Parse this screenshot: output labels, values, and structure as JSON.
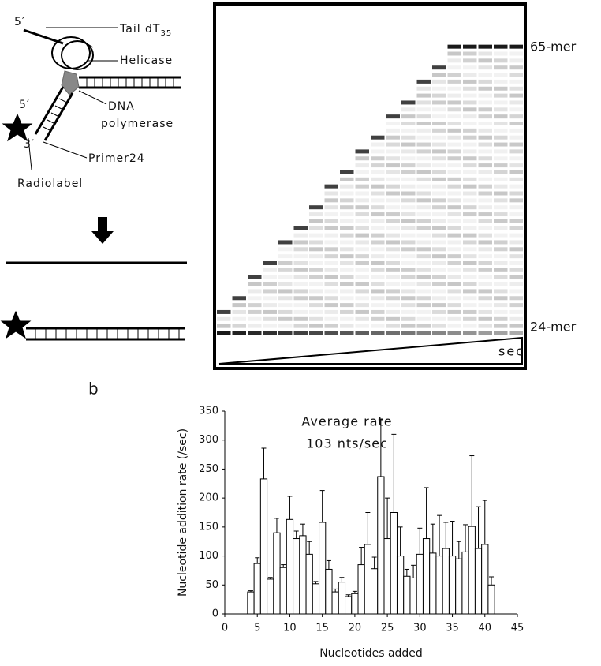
{
  "diagram": {
    "five_prime_top": "5′",
    "tail": "Tail dT",
    "tail_sub": "35",
    "helicase": "Helicase",
    "pol_1": "DNA",
    "pol_2": "polymerase",
    "five_prime": "5′",
    "three_prime": "3′",
    "primer": "Primer24",
    "radiolabel": "Radiolabel"
  },
  "gel": {
    "top_label": "65-mer",
    "bottom_label": "24-mer",
    "wedge_label": "sec"
  },
  "panel_label": "b",
  "chart_data": {
    "type": "bar",
    "xlabel": "Nucleotides added",
    "ylabel": "Nucleotide addition rate (/sec)",
    "annotation": [
      "Average rate",
      "103 nts/sec"
    ],
    "x": [
      4,
      5,
      6,
      7,
      8,
      9,
      10,
      11,
      12,
      13,
      14,
      15,
      16,
      17,
      18,
      19,
      20,
      21,
      22,
      23,
      24,
      25,
      26,
      27,
      28,
      29,
      30,
      31,
      32,
      33,
      34,
      35,
      36,
      37,
      38,
      39,
      40,
      41
    ],
    "values": [
      38,
      87,
      233,
      60,
      140,
      80,
      163,
      130,
      135,
      103,
      52,
      158,
      77,
      38,
      55,
      30,
      35,
      85,
      120,
      78,
      237,
      130,
      175,
      100,
      65,
      62,
      103,
      130,
      105,
      100,
      113,
      100,
      95,
      107,
      151,
      113,
      120,
      50
    ],
    "errors": [
      2,
      10,
      53,
      3,
      25,
      5,
      40,
      13,
      20,
      22,
      4,
      55,
      15,
      5,
      8,
      3,
      4,
      30,
      55,
      20,
      98,
      70,
      135,
      50,
      12,
      22,
      45,
      88,
      50,
      70,
      45,
      60,
      30,
      47,
      122,
      72,
      76,
      14
    ],
    "color": "#ffffff",
    "xlim": [
      0,
      45
    ],
    "xticks": [
      0,
      5,
      10,
      15,
      20,
      25,
      30,
      35,
      40,
      45
    ],
    "ylim": [
      0,
      350
    ],
    "yticks": [
      0,
      50,
      100,
      150,
      200,
      250,
      300,
      350
    ]
  }
}
